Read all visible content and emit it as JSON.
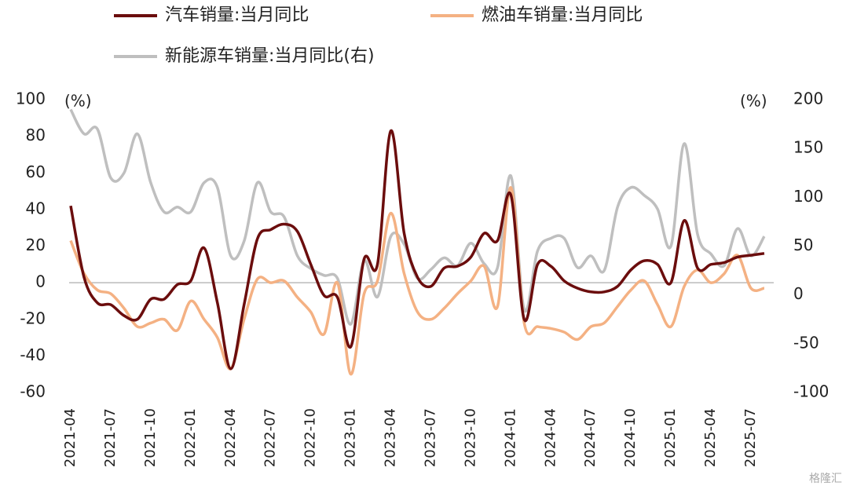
{
  "chart_data": {
    "type": "line",
    "categories": [
      "2021-04",
      null,
      null,
      "2021-07",
      null,
      null,
      "2021-10",
      null,
      null,
      "2022-01",
      null,
      null,
      "2022-04",
      null,
      null,
      "2022-07",
      null,
      null,
      "2022-10",
      null,
      null,
      "2023-01",
      null,
      null,
      "2023-04",
      null,
      null,
      "2023-07",
      null,
      null,
      "2023-10",
      null,
      null,
      "2024-01",
      null,
      null,
      "2024-04",
      null,
      null,
      "2024-07",
      null,
      null,
      "2024-10",
      null,
      null,
      "2025-01",
      null,
      null,
      "2025-04",
      null,
      null,
      "2025-07",
      null
    ],
    "series": [
      {
        "name": "汽车销量:当月同比",
        "color": "#6b0d0d",
        "values": [
          42,
          3,
          -11,
          -12,
          -18,
          -20,
          -9,
          -9,
          -1,
          1,
          19,
          -11,
          -47,
          -12,
          24,
          29,
          32,
          28,
          10,
          -7,
          -8,
          -35,
          13,
          10,
          83,
          27,
          3,
          -2,
          8,
          9,
          14,
          27,
          23,
          48,
          -20,
          10,
          9,
          1,
          -3,
          -5,
          -5,
          -2,
          7,
          12,
          10,
          0,
          34,
          8,
          10,
          11,
          14,
          15,
          16
        ]
      },
      {
        "name": "燃油车销量:当月同比",
        "color": "#f4b183",
        "values": [
          23,
          5,
          -4,
          -6,
          -14,
          -24,
          -22,
          -20,
          -26,
          -10,
          -20,
          -30,
          -47,
          -20,
          2,
          0,
          1,
          -8,
          -16,
          -28,
          0,
          -50,
          -6,
          1,
          38,
          5,
          -16,
          -20,
          -14,
          -6,
          1,
          9,
          -13,
          52,
          -22,
          -24,
          -25,
          -27,
          -31,
          -24,
          -22,
          -13,
          -4,
          1,
          -12,
          -24,
          -2,
          7,
          0,
          5,
          15,
          -3,
          -3
        ]
      },
      {
        "name": "新能源车销量:当月同比(右)",
        "color": "#bfbfbf",
        "axis": "y2",
        "values": [
          190,
          165,
          170,
          120,
          125,
          165,
          115,
          85,
          90,
          85,
          115,
          110,
          40,
          55,
          115,
          85,
          80,
          40,
          27,
          20,
          17,
          -30,
          35,
          -2,
          60,
          52,
          17,
          26,
          38,
          30,
          53,
          32,
          28,
          122,
          -15,
          45,
          58,
          58,
          28,
          40,
          25,
          90,
          110,
          102,
          88,
          50,
          155,
          62,
          42,
          30,
          68,
          40,
          60
        ]
      }
    ],
    "ylabel": "(%)",
    "y2label": "(%)",
    "ylim": [
      -60,
      100
    ],
    "yticks": [
      100,
      80,
      60,
      40,
      20,
      0,
      -20,
      -40,
      -60
    ],
    "y2lim": [
      -100,
      200
    ],
    "y2ticks": [
      200,
      150,
      100,
      50,
      0,
      -50,
      -100
    ],
    "zero_line": true,
    "legend": "top",
    "watermark": "格隆汇"
  }
}
